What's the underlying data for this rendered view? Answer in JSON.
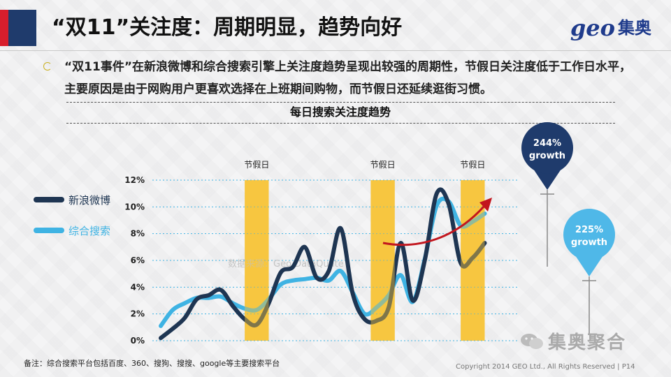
{
  "header": {
    "title": "“双11”关注度：周期明显，趋势向好",
    "logo_en": "geo",
    "logo_cn": "集奥"
  },
  "description": "“双11事件”在新浪微博和综合搜索引擎上关注度趋势呈现出较强的周期性，节假日关注度低于工作日水平，主要原因是由于网购用户更喜欢选择在上班期间购物，而节假日还延续逛街习惯。",
  "chart_data": {
    "type": "line",
    "title": "每日搜索关注度趋势",
    "ylim": [
      0,
      12
    ],
    "y_ticks": [
      "0%",
      "2%",
      "4%",
      "6%",
      "8%",
      "10%",
      "12%"
    ],
    "xlim": [
      0,
      30
    ],
    "holidays": [
      {
        "label": "节假日",
        "range": [
          7,
          9
        ]
      },
      {
        "label": "节假日",
        "range": [
          17.5,
          19.5
        ]
      },
      {
        "label": "节假日",
        "range": [
          25,
          27
        ]
      }
    ],
    "series": [
      {
        "name": "新浪微博",
        "color": "#1e3552",
        "x": [
          0,
          1,
          2,
          3,
          4,
          5,
          6,
          7,
          8,
          9,
          10,
          11,
          12,
          13,
          14,
          15,
          16,
          17,
          18,
          19,
          20,
          21,
          22,
          23,
          24,
          25,
          26,
          27
        ],
        "values": [
          0.2,
          0.9,
          1.7,
          3.1,
          3.4,
          3.8,
          2.6,
          1.6,
          1.2,
          2.8,
          5.1,
          5.5,
          7.0,
          4.7,
          5.2,
          8.4,
          3.5,
          1.6,
          1.5,
          2.5,
          7.3,
          3.0,
          6.0,
          11.0,
          10.2,
          5.8,
          6.2,
          7.3
        ]
      },
      {
        "name": "综合搜索",
        "color": "#3fb3e3",
        "x": [
          0,
          1,
          2,
          3,
          4,
          5,
          6,
          7,
          8,
          9,
          10,
          11,
          12,
          13,
          14,
          15,
          16,
          17,
          18,
          19,
          20,
          21,
          22,
          23,
          24,
          25,
          26,
          27
        ],
        "values": [
          1.1,
          2.3,
          2.8,
          3.2,
          3.2,
          3.3,
          2.8,
          2.4,
          2.3,
          3.1,
          4.2,
          4.5,
          4.6,
          4.7,
          4.5,
          5.2,
          3.6,
          2.0,
          2.5,
          3.4,
          4.9,
          2.9,
          6.1,
          10.1,
          10.4,
          8.6,
          8.9,
          9.5
        ]
      }
    ],
    "annotations": [
      {
        "label": "244%",
        "sub": "growth",
        "color": "#1f3b6c"
      },
      {
        "label": "225%",
        "sub": "growth",
        "color": "#4fb8e8"
      }
    ],
    "watermark": "数据来源：Geo DataQuate"
  },
  "footer": {
    "note": "备注：综合搜索平台包括百度、360、搜狗、搜搜、google等主要搜索平台",
    "copyright": "Copyright 2014 GEO Ltd., All Rights Reserved  |  P14",
    "wechat": "集奥聚合"
  }
}
